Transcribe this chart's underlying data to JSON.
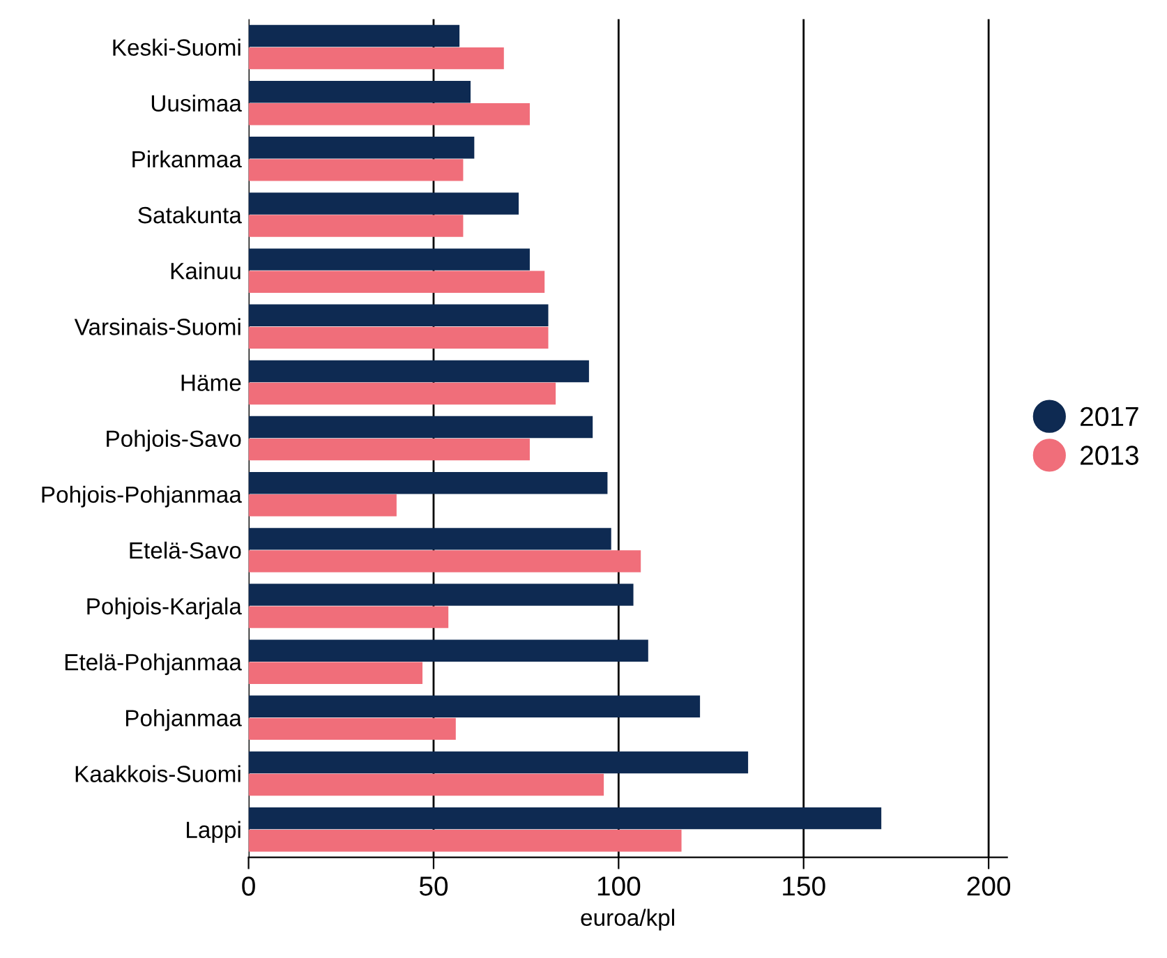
{
  "chart_data": {
    "type": "bar",
    "orientation": "horizontal",
    "xlabel": "euroa/kpl",
    "categories": [
      "Keski-Suomi",
      "Uusimaa",
      "Pirkanmaa",
      "Satakunta",
      "Kainuu",
      "Varsinais-Suomi",
      "Häme",
      "Pohjois-Savo",
      "Pohjois-Pohjanmaa",
      "Etelä-Savo",
      "Pohjois-Karjala",
      "Etelä-Pohjanmaa",
      "Pohjanmaa",
      "Kaakkois-Suomi",
      "Lappi"
    ],
    "series": [
      {
        "name": "2017",
        "color": "#0e2a52",
        "values": [
          57,
          60,
          61,
          73,
          76,
          81,
          92,
          93,
          97,
          98,
          104,
          108,
          122,
          135,
          171
        ]
      },
      {
        "name": "2013",
        "color": "#f06e7a",
        "values": [
          69,
          76,
          58,
          58,
          80,
          81,
          83,
          76,
          40,
          106,
          54,
          47,
          56,
          96,
          117
        ]
      }
    ],
    "xlim": [
      0,
      205
    ],
    "xticks": [
      0,
      50,
      100,
      150,
      200
    ],
    "grid": "x",
    "legend": "right"
  }
}
